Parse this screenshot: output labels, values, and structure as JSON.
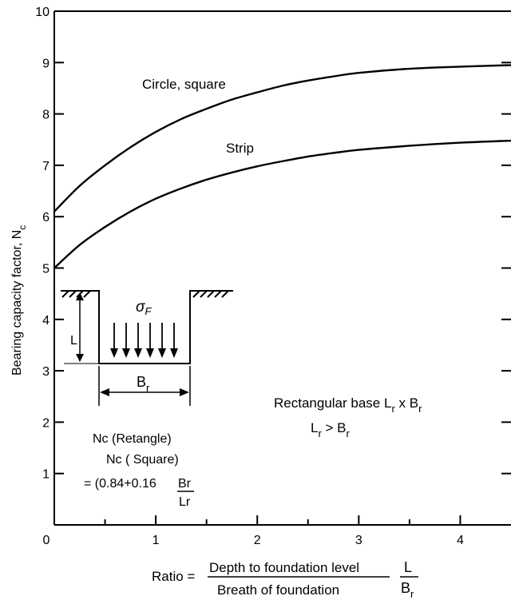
{
  "chart_data": {
    "type": "line",
    "xlim": [
      0,
      4.5
    ],
    "ylim": [
      0,
      10
    ],
    "x_ticks": [
      "0",
      "1",
      "2",
      "3",
      "4"
    ],
    "y_ticks": [
      "1",
      "2",
      "3",
      "4",
      "5",
      "6",
      "7",
      "8",
      "9",
      "10"
    ],
    "grid": false,
    "ylabel": "Bearing capacity factor, N",
    "ylabel_sub": "c",
    "xlabel": {
      "prefix": "Ratio = ",
      "numerator": "Depth to foundation level",
      "denominator": "Breath of foundation",
      "ratio_num": "L",
      "ratio_den": "B",
      "ratio_den_sub": "r"
    },
    "series": [
      {
        "name": "Circle, square",
        "x": [
          0,
          0.25,
          0.5,
          0.75,
          1.0,
          1.25,
          1.5,
          1.75,
          2.0,
          2.25,
          2.5,
          2.75,
          3.0,
          3.5,
          4.0,
          4.5
        ],
        "y": [
          6.1,
          6.6,
          7.0,
          7.35,
          7.65,
          7.9,
          8.1,
          8.28,
          8.42,
          8.55,
          8.65,
          8.73,
          8.8,
          8.88,
          8.92,
          8.95
        ]
      },
      {
        "name": "Strip",
        "x": [
          0,
          0.25,
          0.5,
          0.75,
          1.0,
          1.25,
          1.5,
          1.75,
          2.0,
          2.25,
          2.5,
          2.75,
          3.0,
          3.5,
          4.0,
          4.5
        ],
        "y": [
          5.0,
          5.45,
          5.8,
          6.1,
          6.35,
          6.55,
          6.72,
          6.86,
          6.98,
          7.08,
          7.17,
          7.24,
          7.3,
          7.38,
          7.44,
          7.48
        ]
      }
    ]
  },
  "diagram": {
    "sigma": "σ",
    "sigma_sub": "F",
    "depth_label": "L",
    "width_label": "B",
    "width_label_sub": "r"
  },
  "annotations": {
    "rect_base": "Rectangular base L",
    "rect_base_sub1": "r",
    "rect_base_mid": " x B",
    "rect_base_sub2": "r",
    "cond_l": "L",
    "cond_l_sub": "r",
    "cond_gt": " >  B",
    "cond_b_sub": "r",
    "nc_num": "Nc (Retangle)",
    "nc_den": "Nc ( Square)",
    "formula_prefix": "= (0.84+0.16",
    "formula_frac_num": "Br",
    "formula_frac_den": "Lr"
  }
}
